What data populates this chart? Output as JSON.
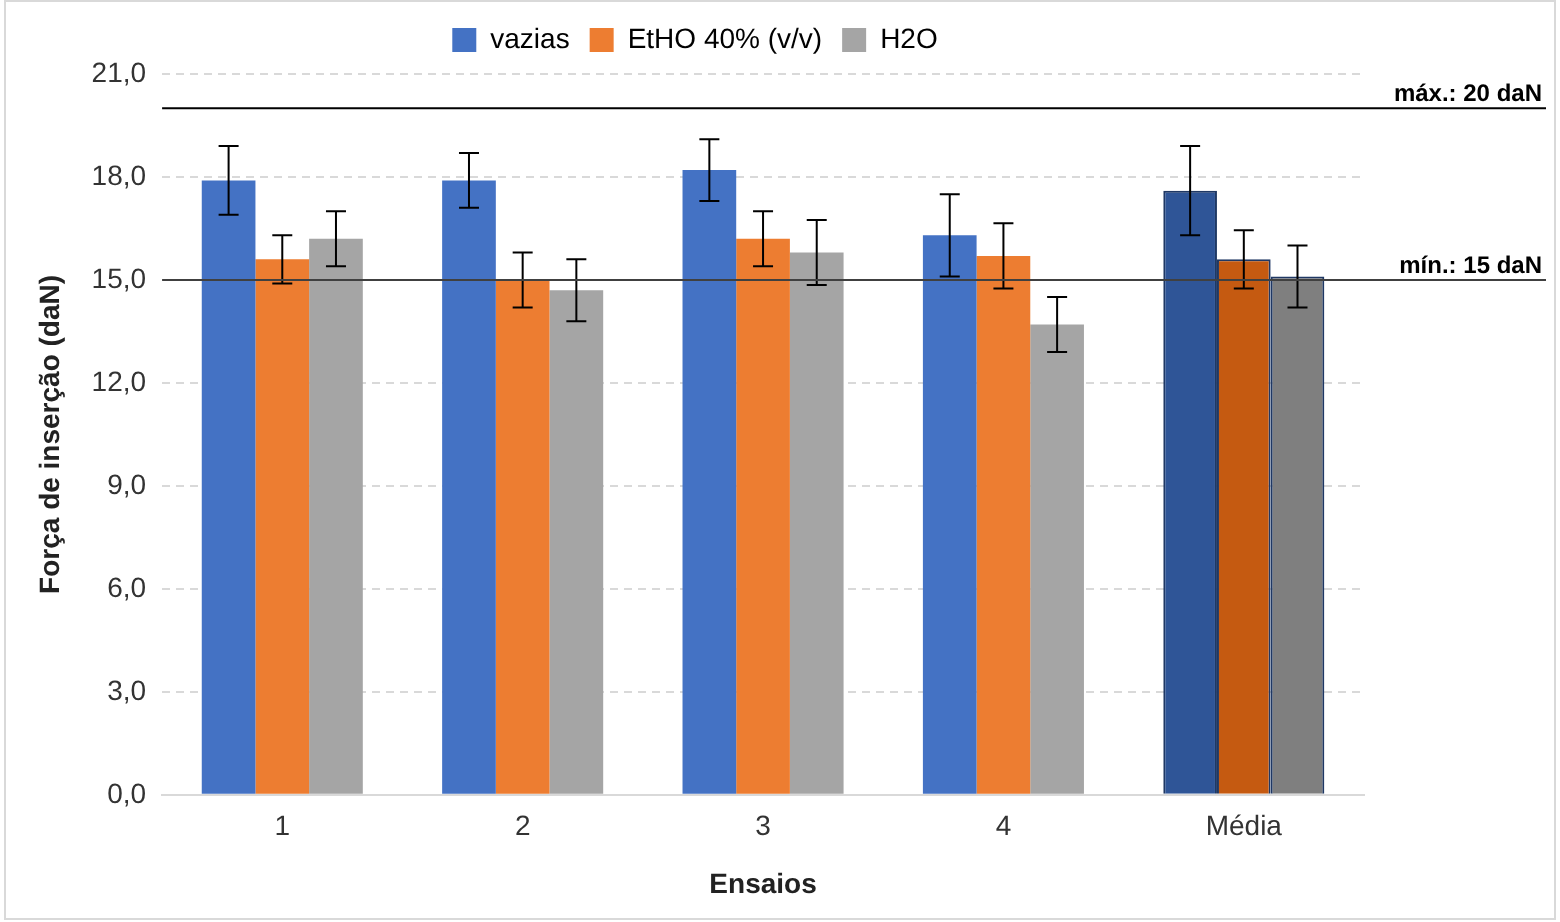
{
  "chart_data": {
    "type": "bar",
    "xlabel": "Ensaios",
    "ylabel": "Força de inserção (daN)",
    "categories": [
      "1",
      "2",
      "3",
      "4",
      "Média"
    ],
    "series": [
      {
        "name": "vazias",
        "color": "#4472c4",
        "colors": [
          "#4472c4",
          "#4472c4",
          "#4472c4",
          "#4472c4",
          "#2f5597"
        ],
        "values": [
          17.9,
          17.9,
          18.2,
          16.3,
          17.6
        ],
        "errors": [
          1.0,
          0.8,
          0.9,
          1.2,
          1.3
        ]
      },
      {
        "name": "EtHO 40% (v/v)",
        "color": "#ed7d31",
        "colors": [
          "#ed7d31",
          "#ed7d31",
          "#ed7d31",
          "#ed7d31",
          "#c55a11"
        ],
        "values": [
          15.6,
          15.0,
          16.2,
          15.7,
          15.6
        ],
        "errors": [
          0.7,
          0.8,
          0.8,
          0.95,
          0.85
        ]
      },
      {
        "name": "H2O",
        "color": "#a5a5a5",
        "colors": [
          "#a5a5a5",
          "#a5a5a5",
          "#a5a5a5",
          "#a5a5a5",
          "#7f7f7f"
        ],
        "values": [
          16.2,
          14.7,
          15.8,
          13.7,
          15.1
        ],
        "errors": [
          0.8,
          0.9,
          0.95,
          0.8,
          0.9
        ]
      }
    ],
    "ylim": [
      0,
      21
    ],
    "yticks": [
      {
        "value": 0,
        "label": "0,0"
      },
      {
        "value": 3,
        "label": "3,0"
      },
      {
        "value": 6,
        "label": "6,0"
      },
      {
        "value": 9,
        "label": "9,0"
      },
      {
        "value": 12,
        "label": "12,0"
      },
      {
        "value": 15,
        "label": "15,0"
      },
      {
        "value": 18,
        "label": "18,0"
      },
      {
        "value": 21,
        "label": "21,0"
      }
    ],
    "ref_lines": [
      {
        "axis": "y",
        "value": 20,
        "label": "máx.: 20 daN",
        "color": "#000000"
      },
      {
        "axis": "y",
        "value": 15,
        "label": "mín.: 15 daN",
        "color": "#404040"
      }
    ],
    "grid": "y",
    "legend": "top"
  }
}
